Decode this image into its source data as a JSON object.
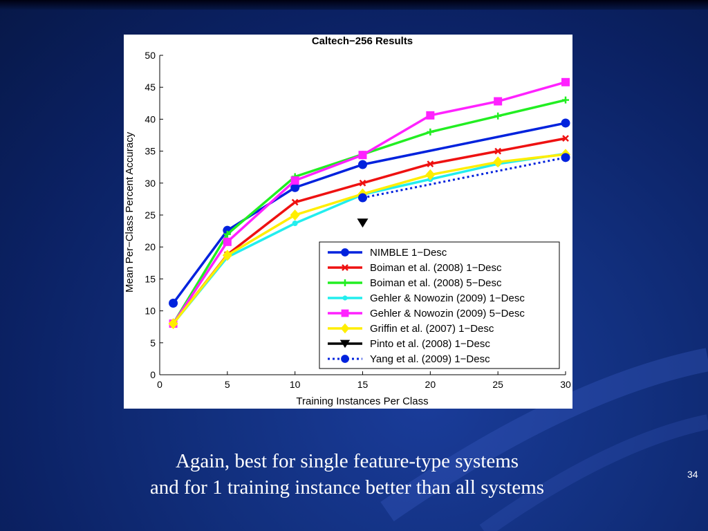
{
  "slide": {
    "caption_line1": "Again, best for single feature-type systems",
    "caption_line2": "and for 1 training instance better than all systems",
    "slide_number": "34"
  },
  "colors": {
    "background": "#0b2163",
    "caption_text": "#ffffff"
  },
  "chart_data": {
    "type": "line",
    "title": "Caltech−256 Results",
    "xlabel": "Training Instances Per Class",
    "ylabel": "Mean Per−Class Percent Accuracy",
    "xlim": [
      0,
      30
    ],
    "ylim": [
      0,
      50
    ],
    "xticks": [
      0,
      5,
      10,
      15,
      20,
      25,
      30
    ],
    "yticks": [
      0,
      5,
      10,
      15,
      20,
      25,
      30,
      35,
      40,
      45,
      50
    ],
    "grid": false,
    "legend_position": "bottom-right",
    "series": [
      {
        "name": "NIMBLE 1−Desc",
        "color": "#0022dd",
        "marker": "circle",
        "dash": "solid",
        "x": [
          1,
          5,
          10,
          15,
          30
        ],
        "y": [
          11.2,
          22.6,
          29.3,
          32.9,
          39.4
        ]
      },
      {
        "name": "Boiman et al. (2008) 1−Desc",
        "color": "#ee1111",
        "marker": "x",
        "dash": "solid",
        "x": [
          1,
          5,
          10,
          15,
          20,
          25,
          30
        ],
        "y": [
          8.0,
          18.8,
          27.0,
          30.0,
          33.0,
          35.0,
          37.0
        ]
      },
      {
        "name": "Boiman et al. (2008) 5−Desc",
        "color": "#22ee22",
        "marker": "plus",
        "dash": "solid",
        "x": [
          1,
          5,
          10,
          15,
          20,
          25,
          30
        ],
        "y": [
          8.0,
          22.0,
          31.0,
          34.5,
          38.0,
          40.5,
          43.0
        ]
      },
      {
        "name": "Gehler & Nowozin (2009) 1−Desc",
        "color": "#22eeee",
        "marker": "dot",
        "dash": "solid",
        "x": [
          1,
          5,
          10,
          15,
          20,
          25,
          30
        ],
        "y": [
          8.0,
          18.4,
          23.7,
          28.2,
          30.6,
          33.0,
          34.6
        ]
      },
      {
        "name": "Gehler & Nowozin (2009) 5−Desc",
        "color": "#ff22ff",
        "marker": "square",
        "dash": "solid",
        "x": [
          1,
          5,
          10,
          15,
          20,
          25,
          30
        ],
        "y": [
          8.0,
          20.8,
          30.4,
          34.4,
          40.6,
          42.8,
          45.8
        ]
      },
      {
        "name": "Griffin et al. (2007) 1−Desc",
        "color": "#ffee00",
        "marker": "diamond",
        "dash": "solid",
        "x": [
          1,
          5,
          10,
          15,
          20,
          25,
          30
        ],
        "y": [
          8.0,
          18.7,
          25.0,
          28.3,
          31.3,
          33.3,
          34.5
        ]
      },
      {
        "name": "Pinto et al. (2008) 1−Desc",
        "color": "#000000",
        "marker": "triangle-down",
        "dash": "solid",
        "x": [
          15
        ],
        "y": [
          23.8
        ]
      },
      {
        "name": "Yang et al. (2009) 1−Desc",
        "color": "#0022dd",
        "marker": "circle",
        "dash": "dotted",
        "x": [
          15,
          30
        ],
        "y": [
          27.7,
          34.0
        ]
      }
    ]
  }
}
